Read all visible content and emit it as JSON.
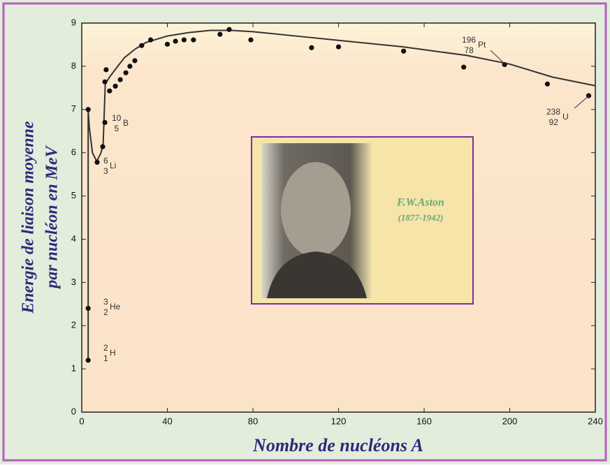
{
  "chart_data": {
    "type": "scatter",
    "xlabel": "Nombre de nucléons A",
    "ylabel": [
      "Energie de liaison moyenne",
      "par nucléon en MeV"
    ],
    "xlim": [
      0,
      240
    ],
    "xticks": [
      0,
      40,
      80,
      120,
      160,
      200,
      240
    ],
    "ylim": [
      0,
      9
    ],
    "yticks": [
      0,
      1,
      2,
      3,
      4,
      5,
      6,
      7,
      8,
      9
    ],
    "point_color": "#111111",
    "curve_color": "#333333",
    "x": [
      3,
      3,
      3,
      7.2,
      9.8,
      10.8,
      10.8,
      11.4,
      13,
      15.7,
      18,
      20.6,
      22.5,
      24.8,
      28,
      32.2,
      40,
      43.8,
      47.8,
      52.2,
      64.6,
      68.9,
      79,
      107.4,
      120,
      150.4,
      178.5,
      197.6,
      217.6,
      236.9
    ],
    "y": [
      1.2,
      2.4,
      7.0,
      5.78,
      6.14,
      6.7,
      7.64,
      7.92,
      7.43,
      7.54,
      7.69,
      7.85,
      8.0,
      8.13,
      8.48,
      8.61,
      8.51,
      8.58,
      8.61,
      8.61,
      8.74,
      8.85,
      8.61,
      8.43,
      8.45,
      8.35,
      7.98,
      8.04,
      7.59,
      7.32
    ],
    "curve": {
      "x": [
        3,
        3,
        3.5,
        5,
        7,
        9,
        10,
        11,
        13,
        16,
        20,
        25,
        30,
        40,
        50,
        60,
        70,
        80,
        100,
        120,
        150,
        180,
        200,
        220,
        240
      ],
      "y": [
        1.2,
        7.0,
        6.6,
        6.0,
        5.8,
        6.0,
        6.2,
        7.6,
        7.75,
        7.95,
        8.2,
        8.4,
        8.55,
        8.7,
        8.78,
        8.83,
        8.83,
        8.8,
        8.7,
        8.6,
        8.45,
        8.25,
        8.05,
        7.75,
        7.55
      ]
    },
    "annotations": [
      {
        "mass": "2",
        "atomic": "1",
        "symbol": "H"
      },
      {
        "mass": "3",
        "atomic": "2",
        "symbol": "He"
      },
      {
        "mass": "6",
        "atomic": "3",
        "symbol": "Li"
      },
      {
        "mass": "10",
        "atomic": "5",
        "symbol": "B"
      },
      {
        "mass": "196",
        "atomic": "78",
        "symbol": "Pt"
      },
      {
        "mass": "238",
        "atomic": "92",
        "symbol": "U"
      }
    ],
    "inset": {
      "name": "F.W.Aston",
      "years": "(1877-1942)"
    }
  }
}
